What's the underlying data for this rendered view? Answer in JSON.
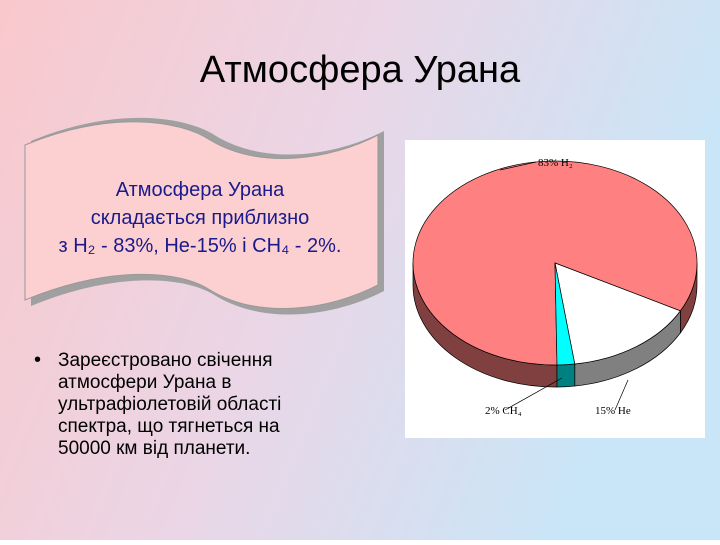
{
  "slide": {
    "title": "Атмосфера Урана",
    "banner": [
      "Атмосфера Урана",
      "складається приблизно",
      "з H₂ - 83%, He-15% і CH₄ - 2%."
    ],
    "bullet": [
      "Зареєстровано свічення",
      "атмосфери Урана в",
      "ультрафіолетовій області",
      "спектра, що тягнеться на",
      "50000 км від планети."
    ]
  },
  "chart_data": {
    "type": "pie3d",
    "values": [
      83,
      15,
      2
    ],
    "value_labels": [
      "83% H₂",
      "15% He",
      "2% CH₄"
    ],
    "colors": [
      "#ff8080",
      "#ffffff",
      "#00ffff"
    ]
  }
}
